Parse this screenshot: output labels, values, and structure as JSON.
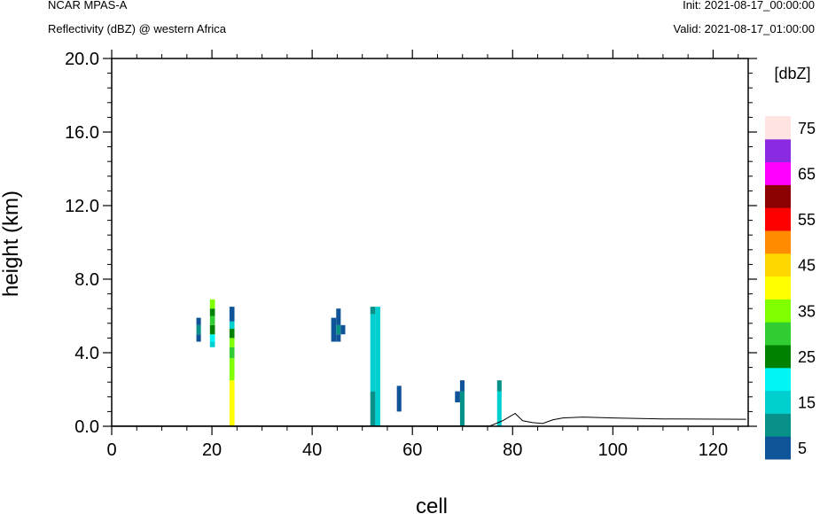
{
  "header": {
    "model": "NCAR MPAS-A",
    "field": "Reflectivity (dBZ) @ western Africa",
    "init": "Init: 2021-08-17_00:00:00",
    "valid": "Valid: 2021-08-17_01:00:00"
  },
  "chart_data": {
    "type": "heatmap",
    "xlabel": "cell",
    "ylabel": "height (km)",
    "xlim": [
      0,
      127
    ],
    "ylim": [
      0,
      20
    ],
    "x_ticks": [
      0,
      20,
      40,
      60,
      80,
      100,
      120
    ],
    "x_tick_labels": [
      "0",
      "20",
      "40",
      "60",
      "80",
      "100",
      "120"
    ],
    "y_ticks": [
      0,
      4,
      8,
      12,
      16,
      20
    ],
    "y_tick_labels": [
      "0.0",
      "4.0",
      "8.0",
      "12.0",
      "16.0",
      "20.0"
    ],
    "grid": false,
    "colorbar": {
      "title": "[dbZ]",
      "levels": [
        5,
        10,
        15,
        20,
        25,
        30,
        35,
        40,
        45,
        50,
        55,
        60,
        65,
        70,
        75
      ],
      "label_values": [
        "5",
        "15",
        "25",
        "35",
        "45",
        "55",
        "65",
        "75"
      ],
      "colors": [
        "#0f5498",
        "#079189",
        "#00cfcf",
        "#00f5f5",
        "#008200",
        "#32cd32",
        "#7fff00",
        "#ffff00",
        "#ffd700",
        "#ff8c00",
        "#ff0000",
        "#8b0000",
        "#ff00ff",
        "#8a2be2",
        "#ffe4e1"
      ]
    },
    "cells": [
      {
        "x0": 16.9,
        "x1": 17.8,
        "y0": 4.6,
        "y1": 5.0,
        "dbz": 5
      },
      {
        "x0": 16.9,
        "x1": 17.8,
        "y0": 5.0,
        "y1": 5.5,
        "dbz": 10
      },
      {
        "x0": 16.9,
        "x1": 17.8,
        "y0": 5.5,
        "y1": 5.9,
        "dbz": 5
      },
      {
        "x0": 19.6,
        "x1": 20.6,
        "y0": 4.3,
        "y1": 4.6,
        "dbz": 15
      },
      {
        "x0": 19.6,
        "x1": 20.6,
        "y0": 4.6,
        "y1": 5.0,
        "dbz": 20
      },
      {
        "x0": 19.6,
        "x1": 20.6,
        "y0": 5.0,
        "y1": 5.5,
        "dbz": 25
      },
      {
        "x0": 19.6,
        "x1": 20.6,
        "y0": 5.5,
        "y1": 6.0,
        "dbz": 30
      },
      {
        "x0": 19.6,
        "x1": 20.6,
        "y0": 6.0,
        "y1": 6.4,
        "dbz": 25
      },
      {
        "x0": 19.6,
        "x1": 20.6,
        "y0": 6.4,
        "y1": 6.9,
        "dbz": 35
      },
      {
        "x0": 23.5,
        "x1": 24.5,
        "y0": 0.0,
        "y1": 2.5,
        "dbz": 40
      },
      {
        "x0": 23.5,
        "x1": 24.5,
        "y0": 2.5,
        "y1": 3.7,
        "dbz": 35
      },
      {
        "x0": 23.5,
        "x1": 24.5,
        "y0": 3.7,
        "y1": 4.3,
        "dbz": 30
      },
      {
        "x0": 23.5,
        "x1": 24.5,
        "y0": 4.3,
        "y1": 4.8,
        "dbz": 35
      },
      {
        "x0": 23.5,
        "x1": 24.5,
        "y0": 4.8,
        "y1": 5.3,
        "dbz": 25
      },
      {
        "x0": 23.5,
        "x1": 24.5,
        "y0": 5.3,
        "y1": 5.7,
        "dbz": 15
      },
      {
        "x0": 23.5,
        "x1": 24.5,
        "y0": 5.7,
        "y1": 6.5,
        "dbz": 5
      },
      {
        "x0": 43.8,
        "x1": 44.8,
        "y0": 4.6,
        "y1": 5.9,
        "dbz": 5
      },
      {
        "x0": 44.8,
        "x1": 45.7,
        "y0": 4.6,
        "y1": 5.0,
        "dbz": 5
      },
      {
        "x0": 44.8,
        "x1": 45.7,
        "y0": 5.0,
        "y1": 5.5,
        "dbz": 10
      },
      {
        "x0": 44.8,
        "x1": 45.7,
        "y0": 5.5,
        "y1": 6.4,
        "dbz": 5
      },
      {
        "x0": 45.7,
        "x1": 46.6,
        "y0": 5.0,
        "y1": 5.5,
        "dbz": 5
      },
      {
        "x0": 51.6,
        "x1": 52.6,
        "y0": 0.0,
        "y1": 1.9,
        "dbz": 10
      },
      {
        "x0": 51.6,
        "x1": 52.6,
        "y0": 1.9,
        "y1": 6.1,
        "dbz": 15
      },
      {
        "x0": 51.6,
        "x1": 52.6,
        "y0": 6.1,
        "y1": 6.5,
        "dbz": 10
      },
      {
        "x0": 52.6,
        "x1": 53.6,
        "y0": 0.0,
        "y1": 6.5,
        "dbz": 15
      },
      {
        "x0": 56.9,
        "x1": 57.8,
        "y0": 0.8,
        "y1": 2.2,
        "dbz": 5
      },
      {
        "x0": 68.5,
        "x1": 69.5,
        "y0": 1.3,
        "y1": 1.9,
        "dbz": 5
      },
      {
        "x0": 69.5,
        "x1": 70.4,
        "y0": 0.0,
        "y1": 1.9,
        "dbz": 10
      },
      {
        "x0": 69.5,
        "x1": 70.4,
        "y0": 1.9,
        "y1": 2.5,
        "dbz": 5
      },
      {
        "x0": 76.9,
        "x1": 77.8,
        "y0": 0.0,
        "y1": 1.9,
        "dbz": 15
      },
      {
        "x0": 76.9,
        "x1": 77.8,
        "y0": 1.9,
        "y1": 2.5,
        "dbz": 10
      }
    ],
    "terrain": {
      "x": [
        0,
        75.5,
        78,
        80.5,
        82,
        84,
        86,
        88,
        90,
        94,
        100,
        110,
        126.6
      ],
      "y": [
        0.02,
        0.02,
        0.3,
        0.7,
        0.3,
        0.2,
        0.15,
        0.35,
        0.45,
        0.5,
        0.45,
        0.4,
        0.38
      ]
    }
  }
}
